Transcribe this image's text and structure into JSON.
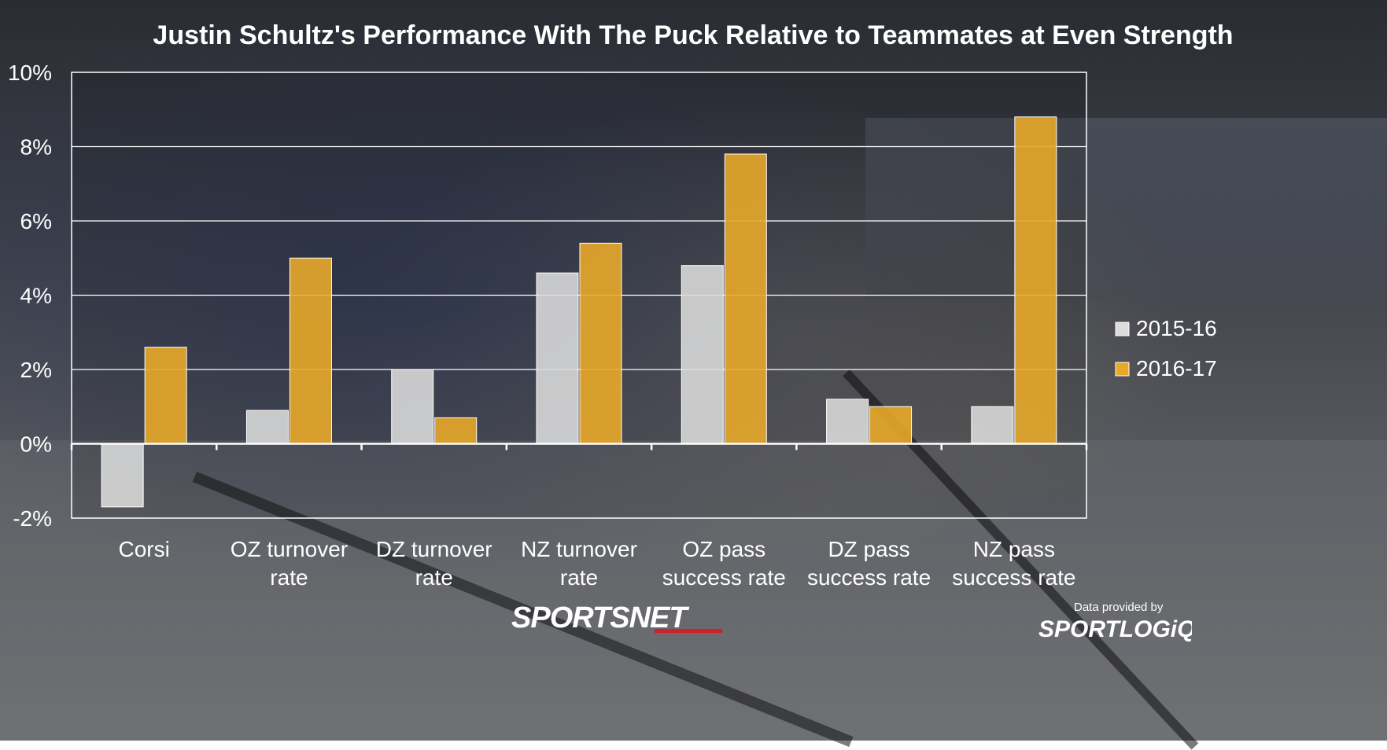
{
  "chart_data": {
    "type": "bar",
    "title": "Justin Schultz's Performance With The Puck Relative to Teammates at Even Strength",
    "categories": [
      [
        "Corsi"
      ],
      [
        "OZ turnover",
        "rate"
      ],
      [
        "DZ turnover",
        "rate"
      ],
      [
        "NZ turnover",
        "rate"
      ],
      [
        "OZ pass",
        "success rate"
      ],
      [
        "DZ pass",
        "success rate"
      ],
      [
        "NZ pass",
        "success rate"
      ]
    ],
    "series": [
      {
        "name": "2015-16",
        "color": "#dcdcdc",
        "values": [
          -1.7,
          0.9,
          2.0,
          4.6,
          4.8,
          1.2,
          1.0
        ]
      },
      {
        "name": "2016-17",
        "color": "#e8a82a",
        "values": [
          2.6,
          5.0,
          0.7,
          5.4,
          7.8,
          1.0,
          8.8
        ]
      }
    ],
    "ylim": [
      -2,
      10
    ],
    "yticks": [
      -2,
      0,
      2,
      4,
      6,
      8,
      10
    ],
    "ytick_labels": [
      "-2%",
      "0%",
      "2%",
      "4%",
      "6%",
      "8%",
      "10%"
    ],
    "grid": true,
    "legend_position": "right"
  },
  "branding": {
    "publisher_logo": "SPORTSNET",
    "data_caption": "Data provided by",
    "data_provider_logo": "SPORTLOGiQ"
  }
}
